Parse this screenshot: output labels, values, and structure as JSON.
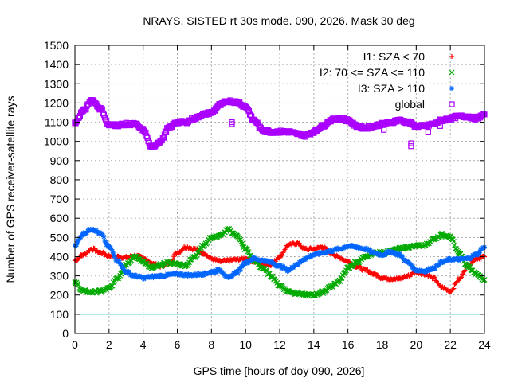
{
  "chart_data": {
    "type": "scatter",
    "title": "NRAYS. SISTED rt 30s mode. 090, 2026. Mask 30 deg",
    "xlabel": "GPS time [hours of doy 090, 2026]",
    "ylabel": "Number of GPS receiver-satellite rays",
    "xlim": [
      0,
      24
    ],
    "ylim": [
      0,
      1500
    ],
    "xticks": [
      0,
      2,
      4,
      6,
      8,
      10,
      12,
      14,
      16,
      18,
      20,
      22,
      24
    ],
    "yticks": [
      0,
      100,
      200,
      300,
      400,
      500,
      600,
      700,
      800,
      900,
      1000,
      1100,
      1200,
      1300,
      1400,
      1500
    ],
    "grid": true,
    "legend_position": "top-right",
    "reference_line": {
      "y": 100,
      "color": "#33cccc"
    },
    "series": [
      {
        "name": "I1: SZA < 70",
        "marker": "+",
        "color": "#ff0000",
        "x": [
          0,
          0.5,
          1,
          1.5,
          2,
          2.5,
          3,
          3.5,
          4,
          4.5,
          5,
          5.5,
          6,
          6.5,
          7,
          7.5,
          8,
          8.5,
          9,
          9.5,
          10,
          10.5,
          11,
          11.5,
          12,
          12.5,
          13,
          13.5,
          14,
          14.5,
          15,
          15.5,
          16,
          16.5,
          17,
          17.5,
          18,
          18.5,
          19,
          19.5,
          20,
          20.5,
          21,
          21.5,
          22,
          22.5,
          23,
          23.5,
          24
        ],
        "values": [
          380,
          410,
          440,
          420,
          405,
          400,
          395,
          405,
          395,
          365,
          350,
          365,
          420,
          450,
          440,
          420,
          390,
          375,
          380,
          385,
          390,
          375,
          360,
          360,
          400,
          460,
          470,
          440,
          440,
          450,
          420,
          395,
          375,
          350,
          330,
          310,
          290,
          285,
          285,
          300,
          320,
          310,
          290,
          240,
          220,
          280,
          350,
          390,
          400
        ]
      },
      {
        "name": "I2: 70 <= SZA <= 110",
        "marker": "x",
        "color": "#00aa00",
        "x": [
          0,
          0.5,
          1,
          1.5,
          2,
          2.5,
          3,
          3.5,
          4,
          4.5,
          5,
          5.5,
          6,
          6.5,
          7,
          7.5,
          8,
          8.5,
          9,
          9.5,
          10,
          10.5,
          11,
          11.5,
          12,
          12.5,
          13,
          13.5,
          14,
          14.5,
          15,
          15.5,
          16,
          16.5,
          17,
          17.5,
          18,
          18.5,
          19,
          19.5,
          20,
          20.5,
          21,
          21.5,
          22,
          22.5,
          23,
          23.5,
          24
        ],
        "values": [
          265,
          220,
          215,
          220,
          235,
          290,
          360,
          400,
          375,
          340,
          355,
          370,
          360,
          355,
          400,
          455,
          500,
          510,
          540,
          510,
          440,
          380,
          340,
          300,
          250,
          220,
          210,
          200,
          200,
          215,
          245,
          275,
          340,
          370,
          395,
          420,
          420,
          430,
          440,
          450,
          455,
          460,
          490,
          515,
          500,
          420,
          350,
          310,
          280
        ]
      },
      {
        "name": "I3: SZA > 110",
        "marker": "*",
        "color": "#0066ff",
        "x": [
          0,
          0.5,
          1,
          1.5,
          2,
          2.5,
          3,
          3.5,
          4,
          4.5,
          5,
          5.5,
          6,
          6.5,
          7,
          7.5,
          8,
          8.5,
          9,
          9.5,
          10,
          10.5,
          11,
          11.5,
          12,
          12.5,
          13,
          13.5,
          14,
          14.5,
          15,
          15.5,
          16,
          16.5,
          17,
          17.5,
          18,
          18.5,
          19,
          19.5,
          20,
          20.5,
          21,
          21.5,
          22,
          22.5,
          23,
          23.5,
          24
        ],
        "values": [
          460,
          520,
          545,
          520,
          450,
          380,
          320,
          300,
          290,
          295,
          300,
          305,
          310,
          305,
          305,
          310,
          320,
          330,
          290,
          320,
          370,
          390,
          380,
          370,
          350,
          330,
          360,
          390,
          410,
          420,
          430,
          440,
          455,
          450,
          440,
          420,
          410,
          425,
          410,
          370,
          330,
          325,
          340,
          370,
          385,
          385,
          390,
          410,
          450
        ]
      },
      {
        "name": "global",
        "marker": "square",
        "color": "#aa00ff",
        "x": [
          0,
          0.5,
          1,
          1.5,
          2,
          2.5,
          3,
          3.5,
          4,
          4.5,
          5,
          5.5,
          6,
          6.5,
          7,
          7.5,
          8,
          8.5,
          9,
          9.5,
          10,
          10.5,
          11,
          11.5,
          12,
          12.5,
          13,
          13.5,
          14,
          14.5,
          15,
          15.5,
          16,
          16.5,
          17,
          17.5,
          18,
          18.5,
          19,
          19.5,
          20,
          20.5,
          21,
          21.5,
          22,
          22.5,
          23,
          23.5,
          24
        ],
        "values": [
          1095,
          1160,
          1215,
          1170,
          1085,
          1085,
          1090,
          1090,
          1060,
          970,
          1000,
          1070,
          1100,
          1100,
          1120,
          1140,
          1150,
          1190,
          1210,
          1205,
          1180,
          1110,
          1060,
          1050,
          1050,
          1050,
          1040,
          1030,
          1050,
          1080,
          1110,
          1120,
          1110,
          1080,
          1070,
          1080,
          1090,
          1100,
          1110,
          1100,
          1080,
          1080,
          1090,
          1110,
          1120,
          1130,
          1130,
          1120,
          1140
        ],
        "outliers": [
          [
            9.2,
            1100
          ],
          [
            9.2,
            1090
          ],
          [
            10.4,
            1110
          ],
          [
            18.1,
            1060
          ],
          [
            19.7,
            975
          ],
          [
            19.7,
            990
          ],
          [
            20.7,
            1050
          ],
          [
            21.4,
            1080
          ]
        ]
      }
    ]
  }
}
